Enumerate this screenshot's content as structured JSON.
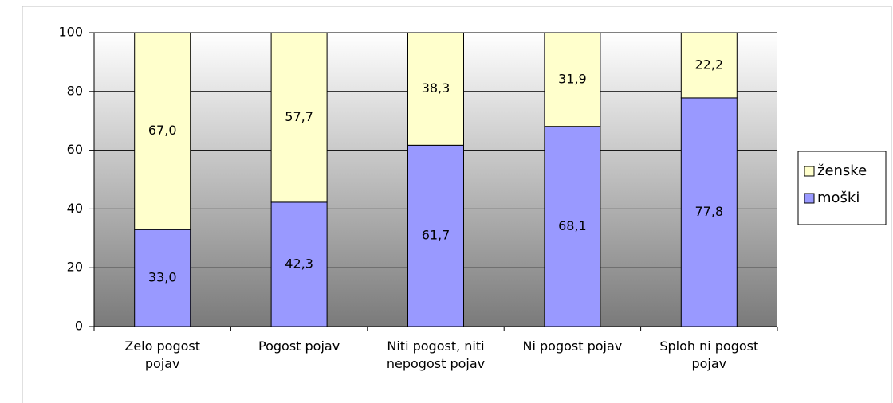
{
  "chart_data": {
    "type": "stacked_bar",
    "categories": [
      "Zelo pogost pojav",
      "Pogost pojav",
      "Niti pogost, niti nepogost pojav",
      "Ni pogost pojav",
      "Sploh ni pogost pojav"
    ],
    "series": [
      {
        "name": "moški",
        "color": "#9999ff",
        "values": [
          33.0,
          42.3,
          61.7,
          68.1,
          77.8
        ],
        "value_labels": [
          "33,0",
          "42,3",
          "61,7",
          "68,1",
          "77,8"
        ]
      },
      {
        "name": "ženske",
        "color": "#ffffcc",
        "values": [
          67.0,
          57.7,
          38.3,
          31.9,
          22.2
        ],
        "value_labels": [
          "67,0",
          "57,7",
          "38,3",
          "31,9",
          "22,2"
        ]
      }
    ],
    "ylim": [
      0,
      100
    ],
    "yticks": [
      0,
      20,
      40,
      60,
      80,
      100
    ],
    "grid": true,
    "legend": "right"
  }
}
